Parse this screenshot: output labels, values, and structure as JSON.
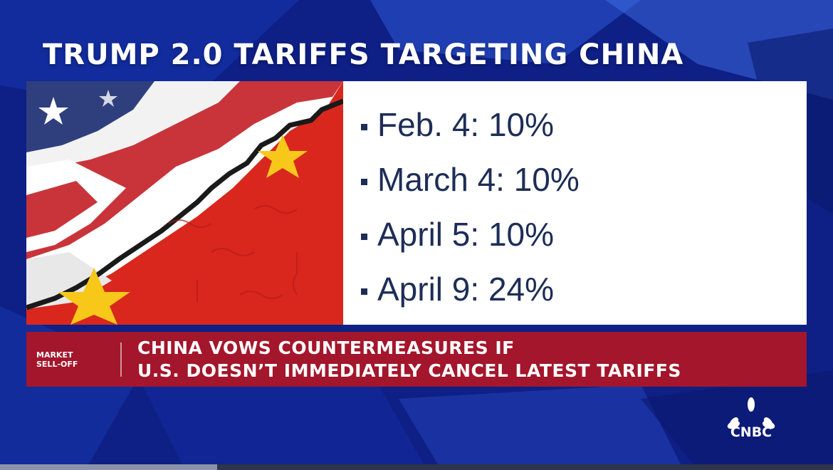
{
  "title": "TRUMP 2.0 TARIFFS TARGETING CHINA",
  "tariffs": [
    "Feb. 4: 10%",
    "March 4: 10%",
    "April 5: 10%",
    "April 9: 24%"
  ],
  "banner": {
    "tag_line1": "MARKET",
    "tag_line2": "SELL-OFF",
    "headline_line1": "CHINA VOWS COUNTERMEASURES IF",
    "headline_line2": "U.S. DOESN’T IMMEDIATELY CANCEL LATEST TARIFFS"
  },
  "logo": {
    "text": "CNBC",
    "icon": "peacock-icon"
  },
  "colors": {
    "background": "#0e1f86",
    "banner": "#a3162b",
    "list_text": "#1d2d57",
    "flag_red": "#d9271d",
    "flag_yellow": "#f7c71a",
    "us_blue": "#2f3f7e"
  }
}
